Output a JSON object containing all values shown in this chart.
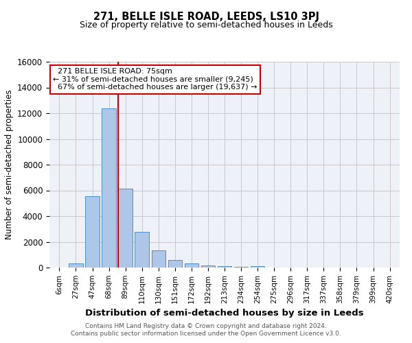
{
  "title": "271, BELLE ISLE ROAD, LEEDS, LS10 3PJ",
  "subtitle": "Size of property relative to semi-detached houses in Leeds",
  "xlabel": "Distribution of semi-detached houses by size in Leeds",
  "ylabel": "Number of semi-detached properties",
  "footnote1": "Contains HM Land Registry data © Crown copyright and database right 2024.",
  "footnote2": "Contains public sector information licensed under the Open Government Licence v3.0.",
  "bar_labels": [
    "6sqm",
    "27sqm",
    "47sqm",
    "68sqm",
    "89sqm",
    "110sqm",
    "130sqm",
    "151sqm",
    "172sqm",
    "192sqm",
    "213sqm",
    "234sqm",
    "254sqm",
    "275sqm",
    "296sqm",
    "317sqm",
    "337sqm",
    "358sqm",
    "379sqm",
    "399sqm",
    "420sqm"
  ],
  "bar_values": [
    0,
    330,
    5550,
    12400,
    6150,
    2800,
    1350,
    580,
    300,
    160,
    90,
    50,
    100,
    0,
    0,
    0,
    0,
    0,
    0,
    0,
    0
  ],
  "bar_color": "#aec6e8",
  "bar_edge_color": "#4a90c4",
  "background_color": "#eef2f8",
  "grid_color": "#c8c8c8",
  "property_label": "271 BELLE ISLE ROAD: 75sqm",
  "pct_smaller": 31,
  "num_smaller": "9,245",
  "pct_larger": 67,
  "num_larger": "19,637",
  "vline_x_index": 3.55,
  "annotation_box_color": "#ffffff",
  "annotation_border_color": "#cc0000",
  "vline_color": "#cc0000",
  "ylim": [
    0,
    16000
  ],
  "yticks": [
    0,
    2000,
    4000,
    6000,
    8000,
    10000,
    12000,
    14000,
    16000
  ]
}
